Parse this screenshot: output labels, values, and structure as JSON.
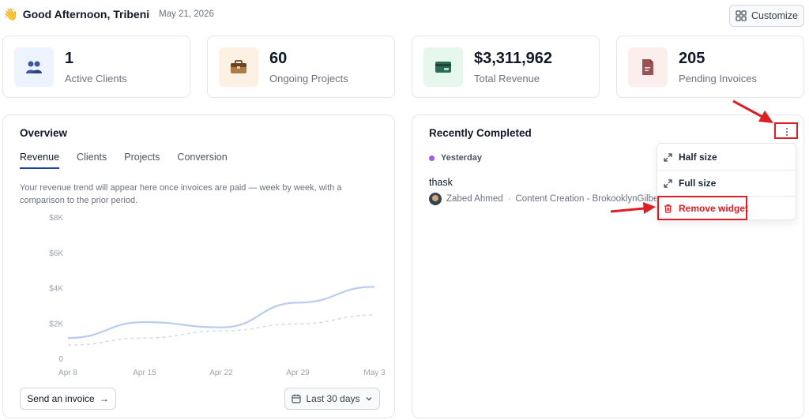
{
  "header": {
    "greeting": "Good Afternoon, Tribeni",
    "date": "May 21, 2026",
    "customize_label": "Customize"
  },
  "stats": [
    {
      "value": "1",
      "label": "Active Clients",
      "icon": "users-icon",
      "color": "#3b5998",
      "bg": "#eef4ff"
    },
    {
      "value": "60",
      "label": "Ongoing Projects",
      "icon": "briefcase-icon",
      "color": "#8b5a2b",
      "bg": "#fdf1e3"
    },
    {
      "value": "$3,311,962",
      "label": "Total Revenue",
      "icon": "wallet-icon",
      "color": "#1f5f4a",
      "bg": "#e6f7ee"
    },
    {
      "value": "205",
      "label": "Pending Invoices",
      "icon": "invoice-icon",
      "color": "#7a3b3b",
      "bg": "#fdeeee"
    }
  ],
  "overview": {
    "title": "Overview",
    "tabs": [
      "Revenue",
      "Clients",
      "Projects",
      "Conversion"
    ],
    "active_tab": "Revenue",
    "hint": "Your revenue trend will appear here once invoices are paid — week by week, with a comparison to the prior period.",
    "send_invoice_label": "Send an invoice",
    "range_label": "Last 30 days"
  },
  "chart_data": {
    "type": "line",
    "x": [
      "Apr 8",
      "Apr 15",
      "Apr 22",
      "Apr 29",
      "May 3"
    ],
    "y_ticks": [
      "$8K",
      "$6K",
      "$4K",
      "$2K",
      "0"
    ],
    "ylim": [
      0,
      8000
    ],
    "grid": false,
    "series": [
      {
        "values": [
          1200,
          2100,
          1800,
          3200,
          4100
        ],
        "color": "#b8cdf0",
        "style": "solid"
      },
      {
        "values": [
          800,
          1200,
          1600,
          2000,
          2500
        ],
        "color": "#d1d9ee",
        "style": "dashed"
      }
    ]
  },
  "recent": {
    "title": "Recently Completed",
    "group_label": "Yesterday",
    "task_title": "thask",
    "assignee": "Zabed Ahmed",
    "project": "Content Creation - BrokooklynGilbert"
  },
  "menu": {
    "items": [
      {
        "label": "Half size",
        "icon": "expand-icon"
      },
      {
        "label": "Full size",
        "icon": "expand-icon"
      },
      {
        "label": "Remove widget",
        "icon": "trash-icon"
      }
    ]
  },
  "colors": {
    "annotation": "#e11d24",
    "accent": "#1e40af"
  }
}
